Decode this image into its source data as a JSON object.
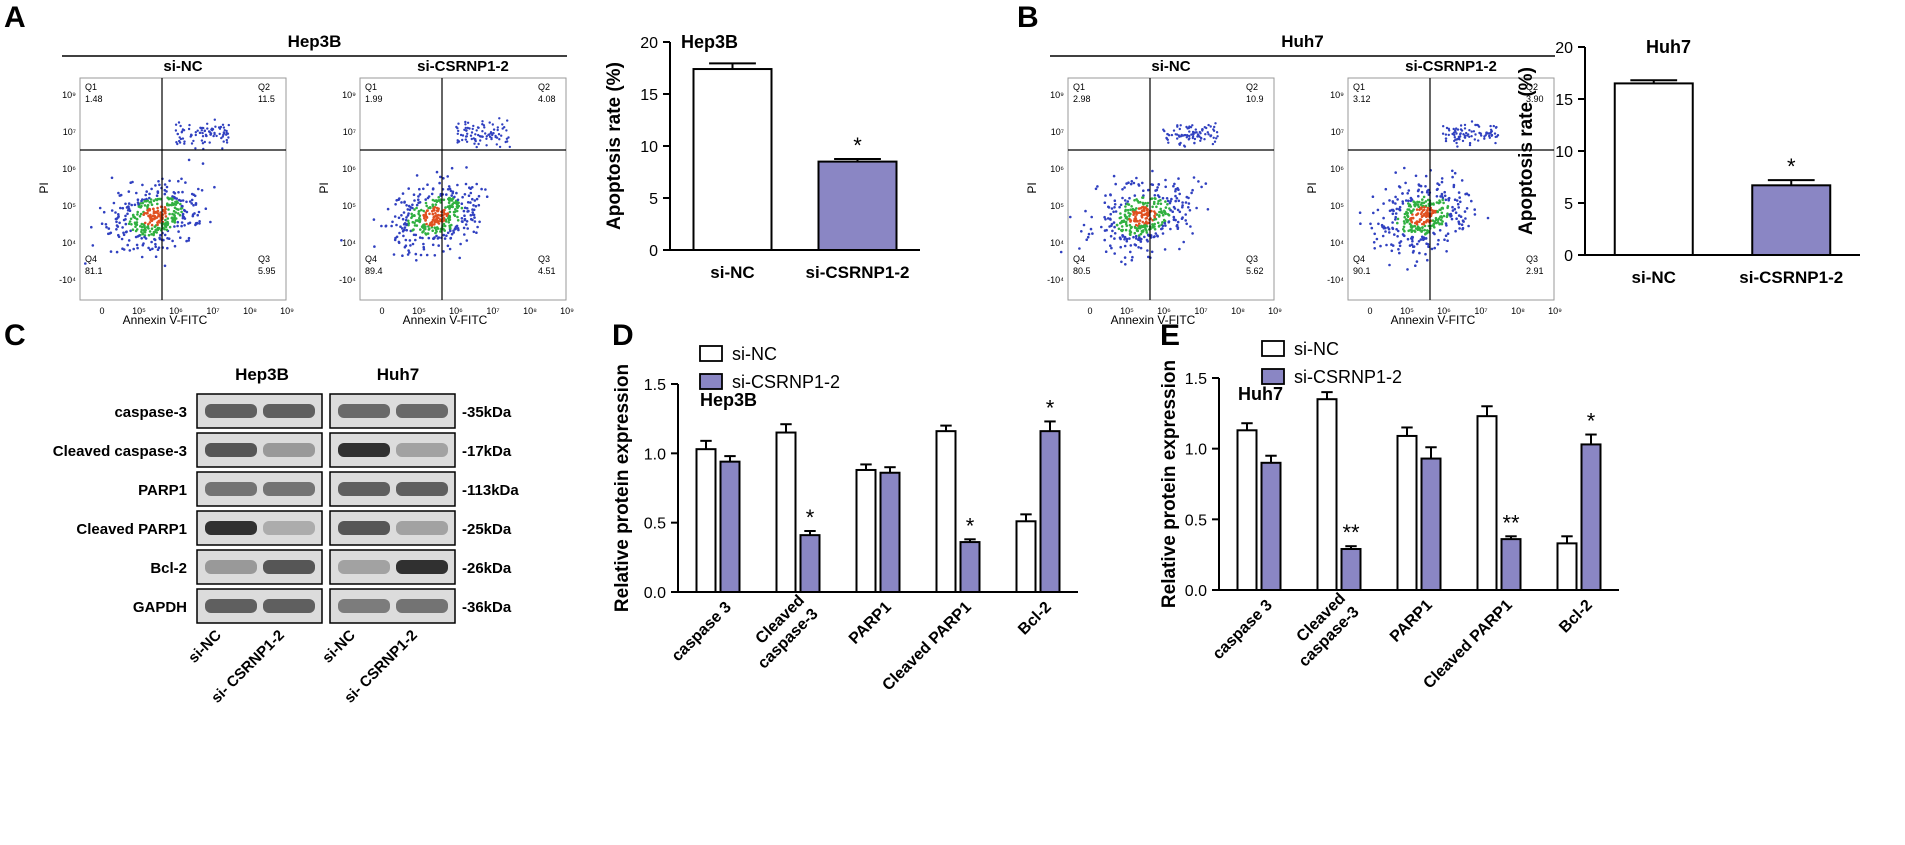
{
  "colors": {
    "bar_control": "#ffffff",
    "bar_treatment": "#8a86c4",
    "axis": "#000000",
    "dot_low": "#3040c0",
    "dot_high": "#e05020",
    "dot_mid": "#30b040",
    "blot_bg": "#dcdcdc"
  },
  "panel_letters": {
    "a": "A",
    "b": "B",
    "c": "C",
    "d": "D",
    "e": "E"
  },
  "flow": {
    "panels": [
      {
        "cell_line": "Hep3B",
        "xlabel": "Annexin V-FITC",
        "ylabel": "PI",
        "x_ticks": [
          "0",
          "10⁵",
          "10⁶",
          "10⁷",
          "10⁸",
          "10⁹"
        ],
        "y_ticks": [
          "10⁹",
          "10⁷",
          "10⁶",
          "10⁵",
          "10⁴",
          "-10⁴"
        ],
        "plots": [
          {
            "group": "si-NC",
            "q1_label": "Q1",
            "q1": "1.48",
            "q2_label": "Q2",
            "q2": "11.5",
            "q3_label": "Q3",
            "q3": "5.95",
            "q4_label": "Q4",
            "q4": "81.1"
          },
          {
            "group": "si-CSRNP1-2",
            "q1_label": "Q1",
            "q1": "1.99",
            "q2_label": "Q2",
            "q2": "4.08",
            "q3_label": "Q3",
            "q3": "4.51",
            "q4_label": "Q4",
            "q4": "89.4"
          }
        ]
      },
      {
        "cell_line": "Huh7",
        "xlabel": "Annexin V-FITC",
        "ylabel": "PI",
        "x_ticks": [
          "0",
          "10⁵",
          "10⁶",
          "10⁷",
          "10⁸",
          "10⁹"
        ],
        "y_ticks": [
          "10⁹",
          "10⁷",
          "10⁶",
          "10⁵",
          "10⁴",
          "-10⁴"
        ],
        "plots": [
          {
            "group": "si-NC",
            "q1_label": "Q1",
            "q1": "2.98",
            "q2_label": "Q2",
            "q2": "10.9",
            "q3_label": "Q3",
            "q3": "5.62",
            "q4_label": "Q4",
            "q4": "80.5"
          },
          {
            "group": "si-CSRNP1-2",
            "q1_label": "Q1",
            "q1": "3.12",
            "q2_label": "Q2",
            "q2": "3.90",
            "q3_label": "Q3",
            "q3": "2.91",
            "q4_label": "Q4",
            "q4": "90.1"
          }
        ]
      }
    ]
  },
  "western": {
    "cell_lines": [
      "Hep3B",
      "Huh7"
    ],
    "rows": [
      {
        "protein": "caspase-3",
        "size": "-35kDa"
      },
      {
        "protein": "Cleaved caspase-3",
        "size": "-17kDa"
      },
      {
        "protein": "PARP1",
        "size": "-113kDa"
      },
      {
        "protein": "Cleaved PARP1",
        "size": "-25kDa"
      },
      {
        "protein": "Bcl-2",
        "size": "-26kDa"
      },
      {
        "protein": "GAPDH",
        "size": "-36kDa"
      }
    ],
    "lane_labels": [
      "si-NC",
      "si- CSRNP1-2",
      "si-NC",
      "si- CSRNP1-2"
    ]
  },
  "chart_data": [
    {
      "panel": "A",
      "type": "bar",
      "title": "Hep3B",
      "xlabel": "",
      "ylabel": "Apoptosis rate (%)",
      "ylim": [
        0,
        20
      ],
      "yticks": [
        0,
        5,
        10,
        15,
        20
      ],
      "categories": [
        "si-NC",
        "si-CSRNP1-2"
      ],
      "values": [
        17.4,
        8.5
      ],
      "errors": [
        0.55,
        0.25
      ],
      "significance": [
        "",
        "*"
      ]
    },
    {
      "panel": "B",
      "type": "bar",
      "title": "Huh7",
      "xlabel": "",
      "ylabel": "Apoptosis rate (%)",
      "ylim": [
        0,
        20
      ],
      "yticks": [
        0,
        5,
        10,
        15,
        20
      ],
      "categories": [
        "si-NC",
        "si-CSRNP1-2"
      ],
      "values": [
        16.5,
        6.7
      ],
      "errors": [
        0.3,
        0.5
      ],
      "significance": [
        "",
        "*"
      ]
    },
    {
      "panel": "D",
      "type": "bar",
      "title": "Hep3B",
      "xlabel": "",
      "ylabel": "Relative protein expression",
      "ylim": [
        0,
        1.5
      ],
      "yticks": [
        0.0,
        0.5,
        1.0,
        1.5
      ],
      "categories": [
        "caspase 3",
        "Cleaved caspase-3",
        "PARP1",
        "Cleaved PARP1",
        "Bcl-2"
      ],
      "series": [
        {
          "name": "si-NC",
          "values": [
            1.03,
            1.15,
            0.88,
            1.16,
            0.51
          ],
          "errors": [
            0.06,
            0.06,
            0.04,
            0.04,
            0.05
          ],
          "significance": [
            "",
            "",
            "",
            "",
            ""
          ]
        },
        {
          "name": "si-CSRNP1-2",
          "values": [
            0.94,
            0.41,
            0.86,
            0.36,
            1.16
          ],
          "errors": [
            0.04,
            0.03,
            0.04,
            0.02,
            0.07
          ],
          "significance": [
            "",
            "*",
            "",
            "*",
            "*"
          ]
        }
      ],
      "legend": "top-left"
    },
    {
      "panel": "E",
      "type": "bar",
      "title": "Huh7",
      "xlabel": "",
      "ylabel": "Relative protein expression",
      "ylim": [
        0,
        1.5
      ],
      "yticks": [
        0.0,
        0.5,
        1.0,
        1.5
      ],
      "categories": [
        "caspase 3",
        "Cleaved caspase-3",
        "PARP1",
        "Cleaved PARP1",
        "Bcl-2"
      ],
      "series": [
        {
          "name": "si-NC",
          "values": [
            1.13,
            1.35,
            1.09,
            1.23,
            0.33
          ],
          "errors": [
            0.05,
            0.05,
            0.06,
            0.07,
            0.05
          ],
          "significance": [
            "",
            "",
            "",
            "",
            ""
          ]
        },
        {
          "name": "si-CSRNP1-2",
          "values": [
            0.9,
            0.29,
            0.93,
            0.36,
            1.03
          ],
          "errors": [
            0.05,
            0.02,
            0.08,
            0.02,
            0.07
          ],
          "significance": [
            "",
            "**",
            "",
            "**",
            "*"
          ]
        }
      ],
      "legend": "top-left"
    }
  ]
}
